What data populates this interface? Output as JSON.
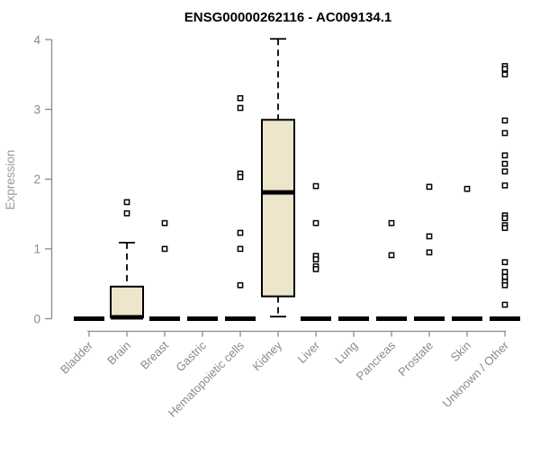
{
  "chart_data": {
    "type": "boxplot",
    "title": "ENSG00000262116 - AC009134.1",
    "ylabel": "Expression",
    "xlabel": "",
    "ylim": [
      0,
      4
    ],
    "yticks": [
      0,
      1,
      2,
      3,
      4
    ],
    "grid": false,
    "legend": "none",
    "categories": [
      "Bladder",
      "Brain",
      "Breast",
      "Gastric",
      "Hematopoietic cells",
      "Kidney",
      "Liver",
      "Lung",
      "Pancreas",
      "Prostate",
      "Skin",
      "Unknown / Other"
    ],
    "series": [
      {
        "category": "Bladder",
        "q1": 0,
        "median": 0,
        "q3": 0,
        "whisker_low": 0,
        "whisker_high": 0,
        "outliers": []
      },
      {
        "category": "Brain",
        "q1": 0.02,
        "median": 0.02,
        "q3": 0.46,
        "whisker_low": 0.02,
        "whisker_high": 1.09,
        "outliers": [
          1.67,
          1.51
        ]
      },
      {
        "category": "Breast",
        "q1": 0,
        "median": 0,
        "q3": 0,
        "whisker_low": 0,
        "whisker_high": 0,
        "outliers": [
          1.37,
          1.0
        ]
      },
      {
        "category": "Gastric",
        "q1": 0,
        "median": 0,
        "q3": 0,
        "whisker_low": 0,
        "whisker_high": 0,
        "outliers": []
      },
      {
        "category": "Hematopoietic cells",
        "q1": 0,
        "median": 0,
        "q3": 0,
        "whisker_low": 0,
        "whisker_high": 0,
        "outliers": [
          3.16,
          3.02,
          2.08,
          2.03,
          1.23,
          1.0,
          0.48
        ]
      },
      {
        "category": "Kidney",
        "q1": 0.32,
        "median": 1.81,
        "q3": 2.85,
        "whisker_low": 0.03,
        "whisker_high": 4.01,
        "outliers": []
      },
      {
        "category": "Liver",
        "q1": 0,
        "median": 0,
        "q3": 0,
        "whisker_low": 0,
        "whisker_high": 0,
        "outliers": [
          1.9,
          1.37,
          0.9,
          0.85,
          0.75,
          0.71
        ]
      },
      {
        "category": "Lung",
        "q1": 0,
        "median": 0,
        "q3": 0,
        "whisker_low": 0,
        "whisker_high": 0,
        "outliers": []
      },
      {
        "category": "Pancreas",
        "q1": 0,
        "median": 0,
        "q3": 0,
        "whisker_low": 0,
        "whisker_high": 0,
        "outliers": [
          1.37,
          0.91
        ]
      },
      {
        "category": "Prostate",
        "q1": 0,
        "median": 0,
        "q3": 0,
        "whisker_low": 0,
        "whisker_high": 0,
        "outliers": [
          1.89,
          1.18,
          0.95
        ]
      },
      {
        "category": "Skin",
        "q1": 0,
        "median": 0,
        "q3": 0,
        "whisker_low": 0,
        "whisker_high": 0,
        "outliers": [
          1.86
        ]
      },
      {
        "category": "Unknown / Other",
        "q1": 0,
        "median": 0,
        "q3": 0,
        "whisker_low": 0,
        "whisker_high": 0,
        "outliers": [
          3.62,
          3.58,
          3.5,
          2.84,
          2.66,
          2.34,
          2.22,
          2.11,
          1.91,
          1.48,
          1.44,
          1.34,
          1.3,
          0.81,
          0.67,
          0.6,
          0.53,
          0.48,
          0.2
        ]
      }
    ],
    "colors": {
      "box_fill": "#EDE6CB",
      "box_border": "#000000",
      "median": "#000000",
      "outlier_stroke": "#000000",
      "axis": "#8a8a8a",
      "tick_label": "#8a8a8a",
      "ylabel_color": "#9a9a9a",
      "title_color": "#000000",
      "background": "#ffffff"
    }
  }
}
